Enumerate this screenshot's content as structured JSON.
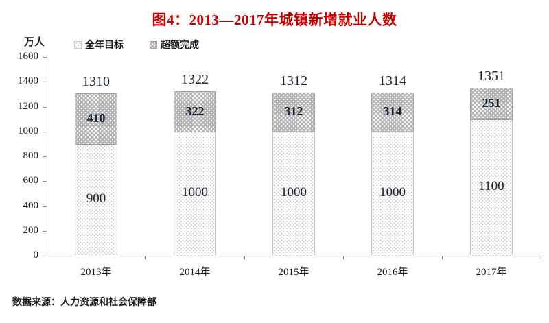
{
  "title": "图4：2013—2017年城镇新增就业人数",
  "y_axis_unit": "万人",
  "legend": {
    "items": [
      {
        "label": "全年目标",
        "swatch": "light-dotted-pattern"
      },
      {
        "label": "超额完成",
        "swatch": "dark-dotted-pattern"
      }
    ]
  },
  "footer": "数据来源：人力资源和社会保障部",
  "colors": {
    "title": "#c00000",
    "axis": "#909090",
    "text": "#1a1a1a",
    "bar_light_bg": "#ffffff",
    "bar_light_dot": "#d2d2d2",
    "bar_light_border": "#c6c6c6",
    "bar_dark_bg": "#b4b4b4",
    "bar_dark_dot": "#f2f2f2",
    "bar_dark_border": "#a2a2a2"
  },
  "chart_data": {
    "type": "bar",
    "stacked": true,
    "title": "图4：2013—2017年城镇新增就业人数",
    "categories": [
      "2013年",
      "2014年",
      "2015年",
      "2016年",
      "2017年"
    ],
    "series": [
      {
        "name": "全年目标",
        "values": [
          900,
          1000,
          1000,
          1000,
          1100
        ]
      },
      {
        "name": "超额完成",
        "values": [
          410,
          322,
          312,
          314,
          251
        ]
      }
    ],
    "totals": [
      1310,
      1322,
      1312,
      1314,
      1351
    ],
    "xlabel": "",
    "ylabel": "万人",
    "ylim": [
      0,
      1600
    ],
    "yticks": [
      0,
      200,
      400,
      600,
      800,
      1000,
      1200,
      1400,
      1600
    ],
    "grid": false,
    "legend_position": "top-left"
  }
}
